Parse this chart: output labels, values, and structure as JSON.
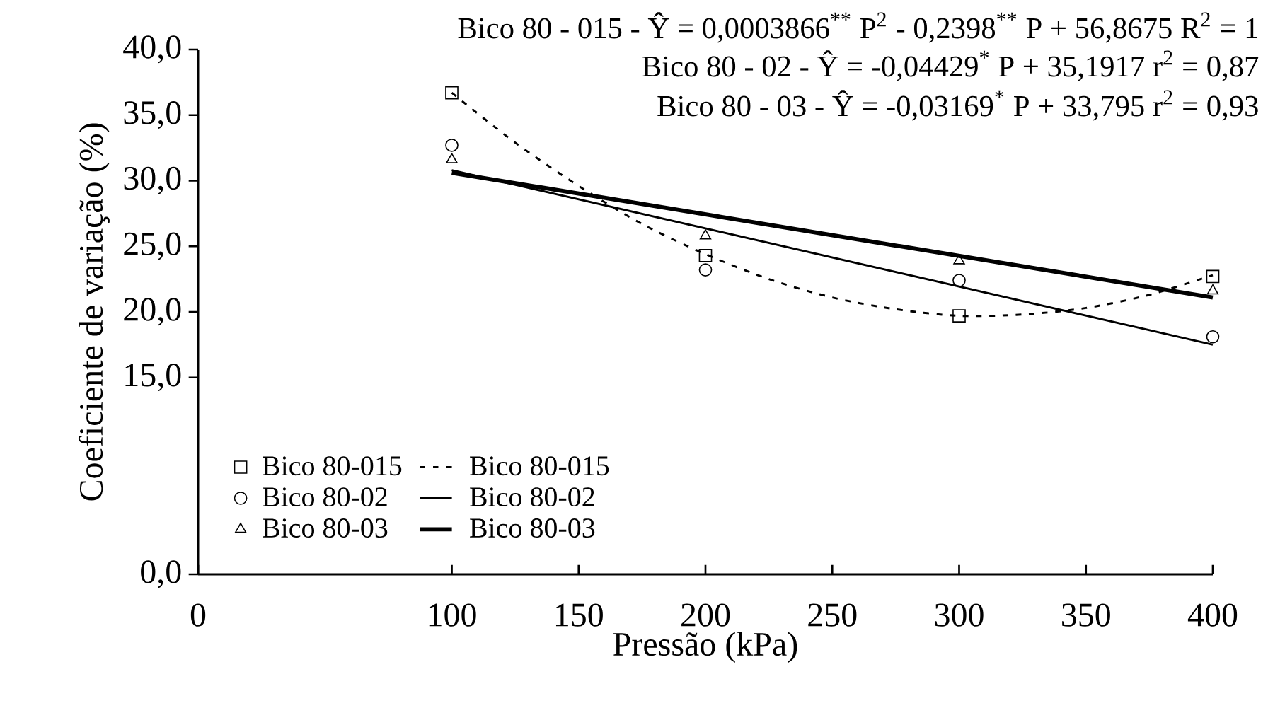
{
  "chart_data": {
    "type": "scatter",
    "xlabel": "Pressão (kPa)",
    "ylabel": "Coeficiente de variação (%)",
    "annotations": [
      "Bico 80 - 015 - Ŷ = 0,0003866$^{**}$ P$^{2}$ - 0,2398$^{**}$ P + 56,8675  R$^{2}$ = 1",
      "Bico 80 - 02 - Ŷ = -0,04429$^{*}$ P + 35,1917   r$^{2}$ = 0,87",
      "Bico 80 - 03 - Ŷ = -0,03169$^{*}$ P + 33,795  r$^{2}$ = 0,93"
    ],
    "xlim": [
      0,
      400
    ],
    "ylim": [
      0,
      40
    ],
    "xticks": [
      0,
      100,
      150,
      200,
      250,
      300,
      350,
      400
    ],
    "yticks": [
      {
        "value": 0,
        "label": "0,0"
      },
      {
        "value": 15,
        "label": "15,0"
      },
      {
        "value": 20,
        "label": "20,0"
      },
      {
        "value": 25,
        "label": "25,0"
      },
      {
        "value": 30,
        "label": "30,0"
      },
      {
        "value": 35,
        "label": "35,0"
      },
      {
        "value": 40,
        "label": "40,0"
      }
    ],
    "legend": "bottom left",
    "grid": false,
    "series": [
      {
        "name": "Bico 80-015",
        "marker": "square",
        "color": "#000000",
        "x": [
          100,
          200,
          300,
          400
        ],
        "values": [
          36.7,
          24.3,
          19.7,
          22.7
        ]
      },
      {
        "name": "Bico 80-015",
        "type": "line",
        "line_style": "dashed",
        "color": "#000000",
        "x": [
          100,
          125,
          150,
          175,
          200,
          225,
          250,
          275,
          300,
          325,
          350,
          375,
          400
        ],
        "values": [
          36.7,
          32.9,
          29.6,
          26.7,
          24.4,
          22.5,
          21.1,
          20.2,
          19.7,
          19.8,
          20.3,
          21.3,
          22.8
        ]
      },
      {
        "name": "Bico 80-02",
        "marker": "circle",
        "color": "#000000",
        "x": [
          100,
          200,
          300,
          400
        ],
        "values": [
          32.7,
          23.2,
          22.4,
          18.1
        ]
      },
      {
        "name": "Bico 80-02",
        "type": "line",
        "line_style": "solid",
        "color": "#000000",
        "x": [
          100,
          400
        ],
        "values": [
          30.8,
          17.5
        ]
      },
      {
        "name": "Bico 80-03",
        "marker": "triangle",
        "color": "#000000",
        "x": [
          100,
          200,
          300,
          400
        ],
        "values": [
          31.6,
          25.8,
          23.9,
          21.6
        ]
      },
      {
        "name": "Bico 80-03",
        "type": "line",
        "line_style": "solid",
        "color": "#000000",
        "x": [
          100,
          400
        ],
        "values": [
          30.6,
          21.1
        ]
      }
    ]
  }
}
